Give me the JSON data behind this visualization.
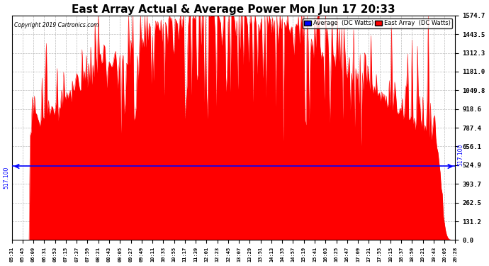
{
  "title": "East Array Actual & Average Power Mon Jun 17 20:33",
  "copyright": "Copyright 2019 Cartronics.com",
  "legend_blue_label": "Average  (DC Watts)",
  "legend_red_label": "East Array  (DC Watts)",
  "average_value": 517.1,
  "ymax": 1574.7,
  "ymin": 0.0,
  "yticks": [
    0.0,
    131.2,
    262.5,
    393.7,
    524.9,
    656.1,
    787.4,
    918.6,
    1049.8,
    1181.0,
    1312.3,
    1443.5,
    1574.7
  ],
  "background_color": "#ffffff",
  "plot_bg_color": "#ffffff",
  "grid_color": "#aaaaaa",
  "red_color": "#ff0000",
  "blue_color": "#0000ff",
  "title_fontsize": 11,
  "xtick_labels": [
    "05:31",
    "05:45",
    "06:09",
    "06:31",
    "06:53",
    "07:15",
    "07:37",
    "07:59",
    "08:21",
    "08:43",
    "09:05",
    "09:27",
    "09:49",
    "10:11",
    "10:33",
    "10:55",
    "11:17",
    "11:39",
    "12:01",
    "12:23",
    "12:45",
    "13:07",
    "13:29",
    "13:51",
    "14:13",
    "14:35",
    "14:57",
    "15:19",
    "15:41",
    "16:03",
    "16:25",
    "16:47",
    "17:09",
    "17:31",
    "17:53",
    "18:15",
    "18:37",
    "18:59",
    "19:21",
    "19:43",
    "20:05",
    "20:28"
  ]
}
